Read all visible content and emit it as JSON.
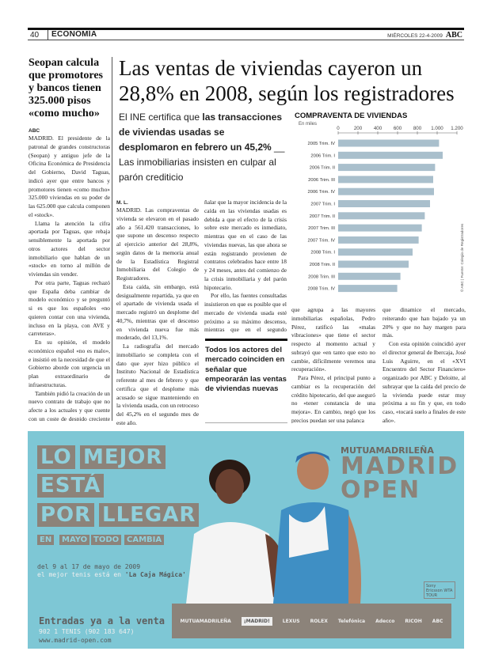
{
  "header": {
    "page_number": "40",
    "section": "ECONOMÍA",
    "date": "MIÉRCOLES 22-4-2009",
    "brand": "ABC"
  },
  "sidebar_article": {
    "headline": "Seopan calcula que promotores y bancos tienen 325.000 pisos «como mucho»",
    "byline": "ABC",
    "paragraphs": [
      "MADRID. El presidente de la patronal de grandes constructoras (Seopan) y antiguo jefe de la Oficina Económica de Presidencia del Gobierno, David Taguas, indicó ayer que entre bancos y promotores tienen «como mucho» 325.000 viviendas en su poder de las 625.000 que calcula componen el «stock».",
      "Llama la atención la cifra aportada por Taguas, que rebaja sensiblemente la aportada por otros actores del sector inmobiliario que hablan de un «stock» en torno al millón de viviendas sin vender.",
      "Por otra parte, Taguas rechazó que España deba cambiar de modelo económico y se preguntó si es que los españoles «no quieren contar con una vivienda, incluso en la playa, con AVE y carreteras».",
      "En su opinión, el modelo económico español «no es malo», e insistió en la necesidad de que el Gobierno aborde con urgencia un plan extraordinario de infraestructuras.",
      "También pidió la creación de un nuevo contrato de trabajo que no afecte a los actuales y que cuente con un coste de despido creciente entre 8 y 24 días por año trabajado, así como la rebaja del IRPF y el aumento del IVA."
    ]
  },
  "main_article": {
    "headline": "Las ventas de viviendas cayeron un 28,8% en 2008, según los registradores",
    "deck": {
      "lead": "El INE certifica que ",
      "bold": "las transacciones de viviendas usadas se desplomaron en febrero un 45,2%",
      "sep": " __ ",
      "rest": "Las inmobiliarias insisten en culpar al parón crediticio"
    },
    "byline": "M. L.",
    "col1": [
      "MADRID. Las compraventas de vivienda se elevaron en el pasado año a 561.420 transacciones, lo que supone un descenso respecto al ejercicio anterior del 28,8%, según datos de la memoria anual de la Estadística Registral Inmobiliaria del Colegio de Registradores.",
      "Esta caída, sin embargo, está desigualmente repartida, ya que en el apartado de vivienda usada el mercado registró un desplome del 40,7%, mientras que el descenso en vivienda nueva fue más moderado, del 13,1%.",
      "La radiografía del mercado inmobiliario se completa con el dato que ayer hizo público el Instituto Nacional de Estadística referente al mes de febrero y que certifica que el desplome más acusado se sigue manteniendo en la vivienda usada, con un retroceso del 45,2% en el segundo mes de este año.",
      "Tanto el INE, como los registradores, como los expertos del sector coinciden en se-"
    ],
    "col2": [
      "ñalar que la mayor incidencia de la caída en las viviendas usadas es debida a que el efecto de la crisis sobre este mercado es inmediato, mientras que en el caso de las viviendas nuevas, las que ahora se están registrando provienen de contratos celebrados hace entre 18 y 24 meses, antes del comienzo de la crisis inmobiliaria y del parón hipotecario.",
      "Por ello, las fuentes consultadas insistieron en que es posible que el mercado de vivienda usada esté próximo a su máximo descenso, mientras que en el segundo semestre de este año asistiremos a un desplome en las compraventas de vivienda nueva.",
      "El presidente del G-14,"
    ],
    "col3": [
      "que agrupa a las mayores inmobiliarias españolas, Pedro Pérez, ratificó las «malas vibraciones» que tiene el sector respecto al momento actual y subrayó que «en tanto que esto no cambie, difícilmente veremos una recuperación».",
      "Para Pérez, el principal punto a cambiar es la recuperación del crédito hipotecario, del que aseguró no «tener constancia de una mejora». En cambio, negó que los precios puedan ser una palanca"
    ],
    "col4": [
      "que dinamice el mercado, reiterando que han bajado ya un 20% y que no hay margen para más.",
      "Con esta opinión coincidió ayer el director general de Ibercaja, José Luis Aguirre, en el «XVI Encuentro del Sector Financiero» organizado por ABC y Deloitte, al subrayar que la caída del precio de la vivienda puede estar muy próxima a su fin y que, en todo caso, «tocará suelo a finales de este año»."
    ],
    "pull_quote": "Todos los actores del mercado coinciden en señalar que empeorarán las ventas de viviendas nuevas"
  },
  "chart_data": {
    "type": "bar",
    "orientation": "horizontal",
    "title": "COMPRAVENTA DE VIVIENDAS",
    "subtitle": "En miles",
    "source": "© ABC | Fuente: Colegio de Registradores",
    "categories": [
      "2005 Trim. IV",
      "2006 Trim. I",
      "2006 Trim. II",
      "2006 Trim. III",
      "2006 Trim. IV",
      "2007 Trim. I",
      "2007 Trim. II",
      "2007 Trim. III",
      "2007 Trim. IV",
      "2008 Trim. I",
      "2008 Trim. II",
      "2008 Trim. III",
      "2008 Trim. IV"
    ],
    "values": [
      1019,
      1056,
      979,
      960,
      968,
      928,
      875,
      845,
      813,
      752,
      712,
      629,
      597
    ],
    "xlim": [
      0,
      1200
    ],
    "ticks": [
      "0",
      "200",
      "400",
      "600",
      "800",
      "1.000",
      "1.200"
    ],
    "bar_color": "#a9bfcc",
    "grid": false
  },
  "ad": {
    "slogan": [
      "LO",
      "MEJOR",
      "ESTÁ",
      "POR",
      "LLEGAR"
    ],
    "tagline": [
      "EN",
      "MAYO",
      "TODO",
      "CAMBIA"
    ],
    "dates": "del 9 al 17 de mayo de 2009",
    "venue_lead": "el mejor tenis está en ",
    "venue": "'La Caja Mágica'",
    "tickets": "Entradas ya a la venta",
    "phone": "902 1 TENIS (902 183 647)",
    "website": "www.madrid-open.com",
    "brand_top": "MUTUAMADRILEÑA",
    "brand_main": [
      "MADRID",
      "OPEN"
    ],
    "sponsors": [
      "MUTUAMADRILEÑA",
      "¡MADRID!",
      "LEXUS",
      "ROLEX",
      "Telefónica",
      "Adecco",
      "RICOH",
      "ABC"
    ],
    "badge": "Sony Ericsson WTA TOUR",
    "bg_color": "#7ec7d5",
    "box_color": "#8c837a"
  }
}
